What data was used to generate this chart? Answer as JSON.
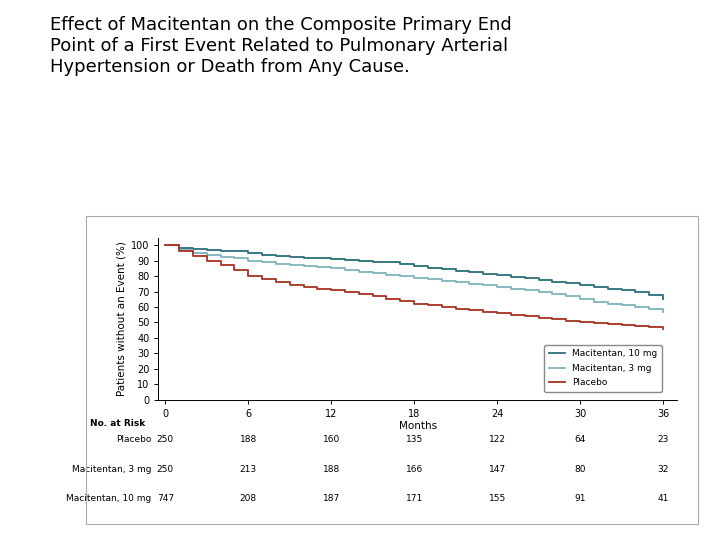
{
  "title": "Effect of Macitentan on the Composite Primary End\nPoint of a First Event Related to Pulmonary Arterial\nHypertension or Death from Any Cause.",
  "ylabel": "Patients without an Event (%)",
  "xlabel": "Months",
  "ylim": [
    0,
    105
  ],
  "xlim": [
    -0.5,
    37
  ],
  "xticks": [
    0,
    6,
    12,
    18,
    24,
    30,
    36
  ],
  "yticks": [
    0,
    10,
    20,
    30,
    40,
    50,
    60,
    70,
    80,
    90,
    100
  ],
  "bg_color": "#ffffff",
  "panel_color": "#ffffff",
  "mac10_color": "#2a6f7a",
  "mac3_color": "#7fb3bc",
  "placebo_color": "#a83020",
  "mac10_x": [
    0,
    1,
    2,
    3,
    4,
    5,
    6,
    7,
    8,
    9,
    10,
    11,
    12,
    13,
    14,
    15,
    16,
    17,
    18,
    19,
    20,
    21,
    22,
    23,
    24,
    25,
    26,
    27,
    28,
    29,
    30,
    31,
    32,
    33,
    34,
    35,
    36
  ],
  "mac10_y": [
    100,
    98.5,
    97.5,
    97,
    96.5,
    96,
    95,
    94,
    93,
    92.5,
    92,
    91.5,
    91,
    90.5,
    90,
    89.5,
    89,
    88,
    86.5,
    85.5,
    84.5,
    83.5,
    82.5,
    81.5,
    80.5,
    79.5,
    78.5,
    77.5,
    76.5,
    75.5,
    74,
    73,
    72,
    71,
    70,
    68,
    65
  ],
  "mac3_x": [
    0,
    1,
    2,
    3,
    4,
    5,
    6,
    7,
    8,
    9,
    10,
    11,
    12,
    13,
    14,
    15,
    16,
    17,
    18,
    19,
    20,
    21,
    22,
    23,
    24,
    25,
    26,
    27,
    28,
    29,
    30,
    31,
    32,
    33,
    34,
    35,
    36
  ],
  "mac3_y": [
    100,
    97,
    95,
    93.5,
    92.5,
    91.5,
    90,
    89,
    88,
    87,
    86.5,
    86,
    85,
    84,
    83,
    82,
    81,
    80,
    79,
    78,
    77,
    76,
    75,
    74,
    73,
    72,
    71,
    70,
    68.5,
    67,
    65,
    63.5,
    62,
    61,
    60,
    58.5,
    57
  ],
  "placebo_x": [
    0,
    1,
    2,
    3,
    4,
    5,
    6,
    7,
    8,
    9,
    10,
    11,
    12,
    13,
    14,
    15,
    16,
    17,
    18,
    19,
    20,
    21,
    22,
    23,
    24,
    25,
    26,
    27,
    28,
    29,
    30,
    31,
    32,
    33,
    34,
    35,
    36
  ],
  "placebo_y": [
    100,
    96,
    93,
    90,
    87,
    84,
    80,
    78,
    76,
    74.5,
    73,
    72,
    71,
    70,
    68.5,
    67,
    65.5,
    64,
    62,
    61,
    60,
    59,
    58,
    57,
    56,
    55,
    54,
    53,
    52,
    51,
    50,
    49.5,
    49,
    48.5,
    48,
    47,
    46
  ],
  "no_at_risk_months": [
    0,
    6,
    12,
    18,
    24,
    30,
    36
  ],
  "placebo_risk": [
    250,
    188,
    160,
    135,
    122,
    64,
    23
  ],
  "mac3_risk": [
    250,
    213,
    188,
    166,
    147,
    80,
    32
  ],
  "mac10_risk": [
    747,
    208,
    187,
    171,
    155,
    91,
    41
  ],
  "legend_labels": [
    "Macitentan, 10 mg",
    "Macitentan, 3 mg",
    "Placebo"
  ],
  "title_fontsize": 13,
  "axis_fontsize": 7.5,
  "tick_fontsize": 7,
  "risk_fontsize": 6.5
}
